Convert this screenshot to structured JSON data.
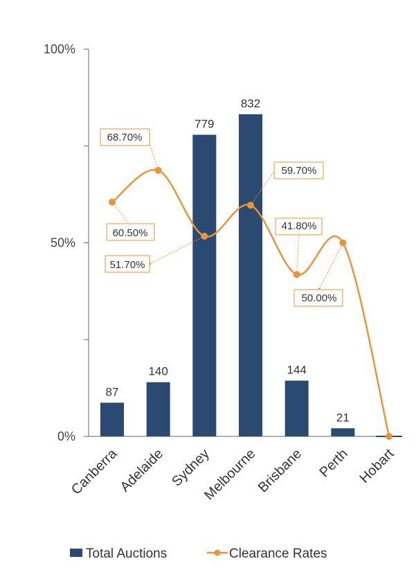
{
  "chart_data": {
    "type": "bar",
    "categories": [
      "Canberra",
      "Adelaide",
      "Sydney",
      "Melbourne",
      "Brisbane",
      "Perth",
      "Hobart"
    ],
    "series": [
      {
        "name": "Total Auctions",
        "type": "bar",
        "values": [
          87,
          140,
          779,
          832,
          144,
          21,
          0
        ],
        "value_labels": [
          "87",
          "140",
          "779",
          "832",
          "144",
          "21",
          ""
        ],
        "color": "#2b4a72"
      },
      {
        "name": "Clearance Rates",
        "type": "line",
        "values": [
          60.5,
          68.7,
          51.7,
          59.7,
          41.8,
          50.0,
          0
        ],
        "value_labels": [
          "60.50%",
          "68.70%",
          "51.70%",
          "59.70%",
          "41.80%",
          "50.00%",
          ""
        ],
        "color": "#e8953a"
      }
    ],
    "y_axis": {
      "ticks": [
        "0%",
        "50%",
        "100%"
      ],
      "ylim": [
        0,
        100
      ]
    },
    "bar_scale_max": 1000,
    "grid": false,
    "legend_position": "bottom"
  }
}
